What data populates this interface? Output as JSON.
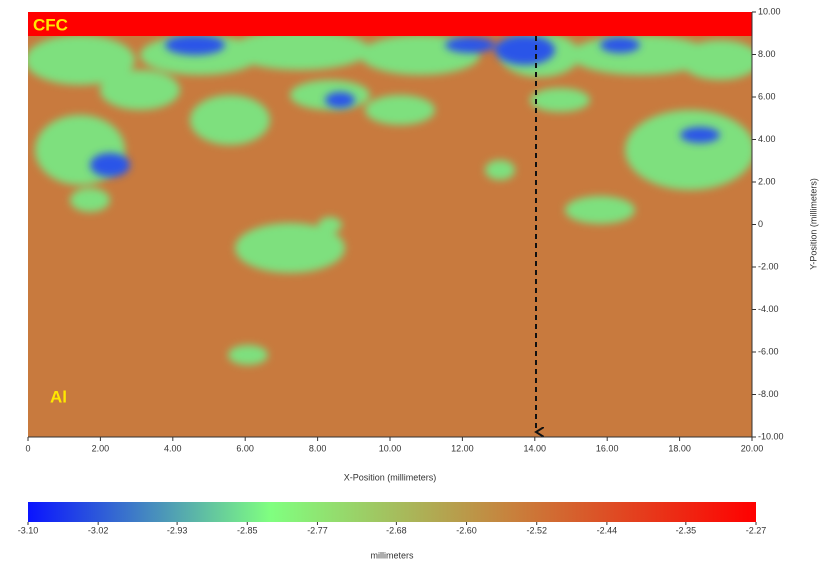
{
  "chart_data": {
    "type": "heatmap",
    "x_label": "X-Position (millimeters)",
    "y_label": "Y-Position (millimeters)",
    "xlim": [
      0,
      20
    ],
    "xticks": [
      0,
      {
        "value": 2,
        "label": "2.00"
      },
      {
        "value": 4,
        "label": "4.00"
      },
      {
        "value": 6,
        "label": "6.00"
      },
      {
        "value": 8,
        "label": "8.00"
      },
      {
        "value": 10,
        "label": "10.00"
      },
      {
        "value": 12,
        "label": "12.00"
      },
      {
        "value": 14,
        "label": "14.00"
      },
      {
        "value": 16,
        "label": "16.00"
      },
      {
        "value": 18,
        "label": "18.00"
      },
      {
        "value": 20,
        "label": "20.00"
      }
    ],
    "ylim": [
      -10,
      10
    ],
    "yticks": [
      {
        "value": 10,
        "label": "10.00"
      },
      {
        "value": 8,
        "label": "8.00"
      },
      {
        "value": 6,
        "label": "6.00"
      },
      {
        "value": 4,
        "label": "4.00"
      },
      {
        "value": 2,
        "label": "2.00"
      },
      0,
      {
        "value": -2,
        "label": "-2.00"
      },
      {
        "value": -4,
        "label": "-4.00"
      },
      {
        "value": -6,
        "label": "-6.00"
      },
      {
        "value": -8,
        "label": "-8.00"
      },
      {
        "value": -10,
        "label": "-10.00"
      }
    ],
    "colorbar": {
      "label": "millimeters",
      "lim": [
        -3.1,
        -2.27
      ],
      "colors": [
        "#0a14ff",
        "#80ff80",
        "#c8803c",
        "#ff0000"
      ],
      "ticks": [
        {
          "value": -3.1,
          "label": "-3.10"
        },
        {
          "value": -3.02,
          "label": "-3.02"
        },
        {
          "value": -2.93,
          "label": "-2.93"
        },
        {
          "value": -2.85,
          "label": "-2.85"
        },
        {
          "value": -2.77,
          "label": "-2.77"
        },
        {
          "value": -2.68,
          "label": "-2.68"
        },
        {
          "value": -2.6,
          "label": "-2.60"
        },
        {
          "value": -2.52,
          "label": "-2.52"
        },
        {
          "value": -2.44,
          "label": "-2.44"
        },
        {
          "value": -2.35,
          "label": "-2.35"
        },
        {
          "value": -2.27,
          "label": "-2.27"
        }
      ]
    },
    "annotations": [
      "CFC",
      "Al"
    ]
  }
}
